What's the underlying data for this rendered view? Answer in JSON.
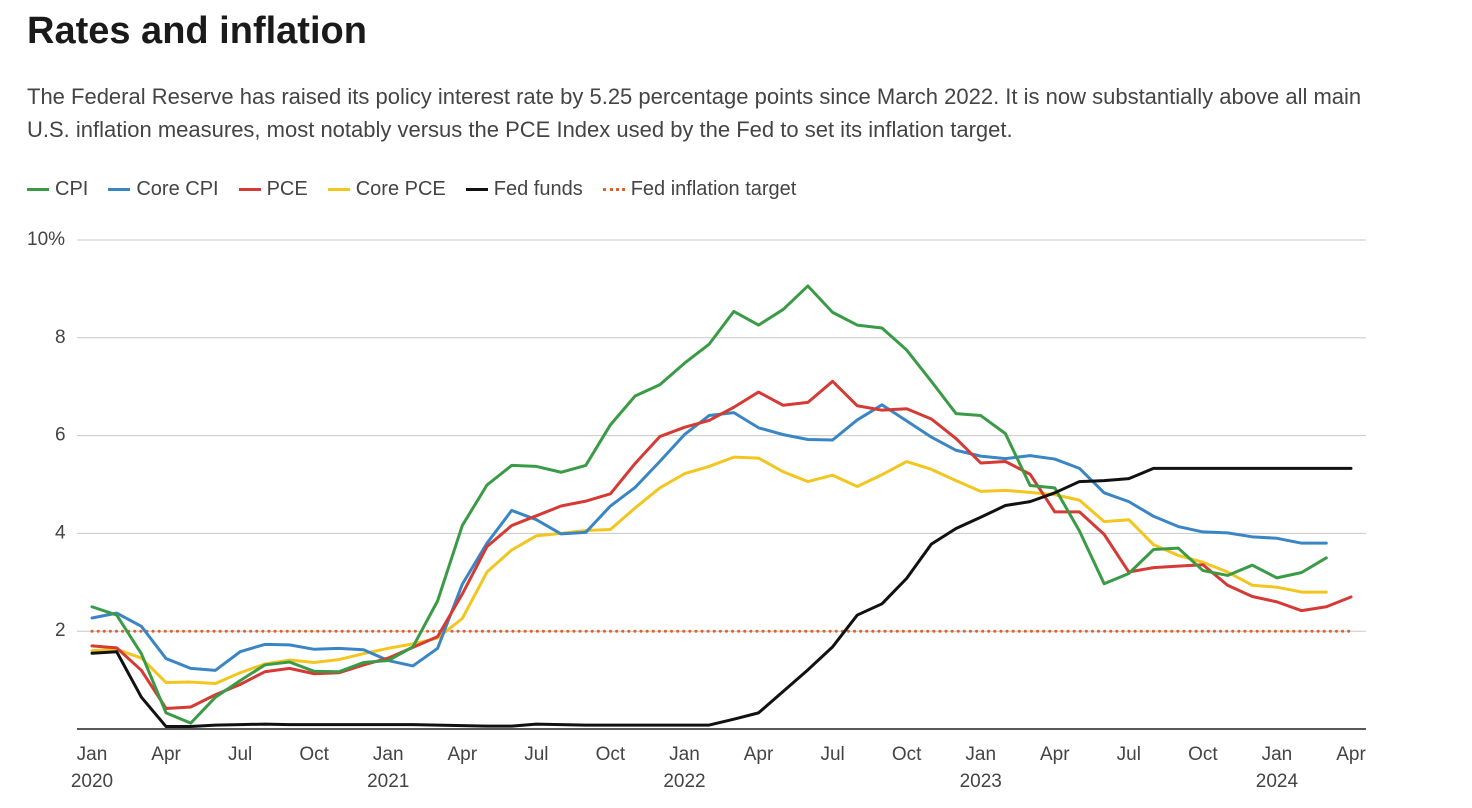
{
  "header": {
    "title": "Rates and inflation",
    "subtitle": "The Federal Reserve has raised its policy interest rate by 5.25 percentage points since March 2022. It is now substantially above all main U.S. inflation measures, most notably versus the PCE Index used by the Fed to set its inflation target."
  },
  "chart_data": {
    "type": "line",
    "title": "Rates and inflation",
    "subtitle": "The Federal Reserve has raised its policy interest rate by 5.25 percentage points since March 2022. It is now substantially above all main U.S. inflation measures, most notably versus the PCE Index used by the Fed to set its inflation target.",
    "xlabel": "",
    "ylabel": "",
    "x": [
      "2020-01",
      "2020-02",
      "2020-03",
      "2020-04",
      "2020-05",
      "2020-06",
      "2020-07",
      "2020-08",
      "2020-09",
      "2020-10",
      "2020-11",
      "2020-12",
      "2021-01",
      "2021-02",
      "2021-03",
      "2021-04",
      "2021-05",
      "2021-06",
      "2021-07",
      "2021-08",
      "2021-09",
      "2021-10",
      "2021-11",
      "2021-12",
      "2022-01",
      "2022-02",
      "2022-03",
      "2022-04",
      "2022-05",
      "2022-06",
      "2022-07",
      "2022-08",
      "2022-09",
      "2022-10",
      "2022-11",
      "2022-12",
      "2023-01",
      "2023-02",
      "2023-03",
      "2023-04",
      "2023-05",
      "2023-06",
      "2023-07",
      "2023-08",
      "2023-09",
      "2023-10",
      "2023-11",
      "2023-12",
      "2024-01",
      "2024-02",
      "2024-03",
      "2024-04"
    ],
    "xlim": [
      "2020-01",
      "2024-04"
    ],
    "ylim": [
      0,
      10
    ],
    "y_ticks": [
      {
        "value": 2,
        "label": "2"
      },
      {
        "value": 4,
        "label": "4"
      },
      {
        "value": 6,
        "label": "6"
      },
      {
        "value": 8,
        "label": "8"
      },
      {
        "value": 10,
        "label": "10%"
      }
    ],
    "x_ticks": [
      {
        "x": "2020-01",
        "label": "Jan",
        "year": "2020"
      },
      {
        "x": "2020-04",
        "label": "Apr",
        "year": ""
      },
      {
        "x": "2020-07",
        "label": "Jul",
        "year": ""
      },
      {
        "x": "2020-10",
        "label": "Oct",
        "year": ""
      },
      {
        "x": "2021-01",
        "label": "Jan",
        "year": "2021"
      },
      {
        "x": "2021-04",
        "label": "Apr",
        "year": ""
      },
      {
        "x": "2021-07",
        "label": "Jul",
        "year": ""
      },
      {
        "x": "2021-10",
        "label": "Oct",
        "year": ""
      },
      {
        "x": "2022-01",
        "label": "Jan",
        "year": "2022"
      },
      {
        "x": "2022-04",
        "label": "Apr",
        "year": ""
      },
      {
        "x": "2022-07",
        "label": "Jul",
        "year": ""
      },
      {
        "x": "2022-10",
        "label": "Oct",
        "year": ""
      },
      {
        "x": "2023-01",
        "label": "Jan",
        "year": "2023"
      },
      {
        "x": "2023-04",
        "label": "Apr",
        "year": ""
      },
      {
        "x": "2023-07",
        "label": "Jul",
        "year": ""
      },
      {
        "x": "2023-10",
        "label": "Oct",
        "year": ""
      },
      {
        "x": "2024-01",
        "label": "Jan",
        "year": "2024"
      },
      {
        "x": "2024-04",
        "label": "Apr",
        "year": ""
      }
    ],
    "grid": true,
    "legend_position": "top-left",
    "series": [
      {
        "name": "CPI",
        "color": "#3a9b46",
        "style": "solid",
        "values": [
          2.5,
          2.33,
          1.54,
          0.33,
          0.12,
          0.65,
          0.99,
          1.31,
          1.37,
          1.18,
          1.17,
          1.36,
          1.4,
          1.68,
          2.62,
          4.16,
          4.99,
          5.39,
          5.37,
          5.25,
          5.39,
          6.22,
          6.81,
          7.04,
          7.48,
          7.87,
          8.54,
          8.26,
          8.58,
          9.06,
          8.52,
          8.26,
          8.2,
          7.75,
          7.11,
          6.45,
          6.41,
          6.04,
          4.98,
          4.93,
          4.05,
          2.97,
          3.18,
          3.67,
          3.7,
          3.24,
          3.14,
          3.35,
          3.09,
          3.2,
          3.5,
          null
        ]
      },
      {
        "name": "Core CPI",
        "color": "#3a86c4",
        "style": "solid",
        "values": [
          2.27,
          2.37,
          2.1,
          1.44,
          1.24,
          1.2,
          1.58,
          1.73,
          1.72,
          1.63,
          1.65,
          1.62,
          1.4,
          1.29,
          1.65,
          2.96,
          3.8,
          4.47,
          4.28,
          3.99,
          4.02,
          4.56,
          4.94,
          5.47,
          6.02,
          6.41,
          6.47,
          6.16,
          6.02,
          5.92,
          5.91,
          6.32,
          6.63,
          6.3,
          5.97,
          5.7,
          5.58,
          5.53,
          5.59,
          5.52,
          5.33,
          4.83,
          4.65,
          4.35,
          4.14,
          4.03,
          4.01,
          3.93,
          3.9,
          3.8,
          3.8,
          null
        ]
      },
      {
        "name": "PCE",
        "color": "#d63a34",
        "style": "solid",
        "values": [
          1.7,
          1.66,
          1.2,
          0.42,
          0.45,
          0.7,
          0.91,
          1.17,
          1.24,
          1.13,
          1.15,
          1.31,
          1.45,
          1.67,
          1.89,
          2.76,
          3.73,
          4.16,
          4.36,
          4.56,
          4.66,
          4.81,
          5.43,
          5.98,
          6.17,
          6.31,
          6.58,
          6.89,
          6.62,
          6.68,
          7.11,
          6.61,
          6.52,
          6.55,
          6.34,
          5.94,
          5.44,
          5.47,
          5.21,
          4.44,
          4.44,
          3.98,
          3.21,
          3.3,
          3.33,
          3.36,
          2.94,
          2.71,
          2.6,
          2.42,
          2.5,
          2.7
        ]
      },
      {
        "name": "Core PCE",
        "color": "#f2c61f",
        "style": "solid",
        "values": [
          1.6,
          1.63,
          1.45,
          0.95,
          0.96,
          0.93,
          1.15,
          1.33,
          1.41,
          1.36,
          1.42,
          1.54,
          1.65,
          1.74,
          1.86,
          2.26,
          3.21,
          3.66,
          3.95,
          4.0,
          4.06,
          4.08,
          4.52,
          4.93,
          5.22,
          5.37,
          5.56,
          5.54,
          5.26,
          5.06,
          5.19,
          4.96,
          5.2,
          5.47,
          5.31,
          5.08,
          4.86,
          4.88,
          4.84,
          4.79,
          4.68,
          4.24,
          4.28,
          3.77,
          3.55,
          3.41,
          3.21,
          2.94,
          2.9,
          2.8,
          2.8,
          null
        ]
      },
      {
        "name": "Fed funds",
        "color": "#111111",
        "style": "solid",
        "values": [
          1.55,
          1.58,
          0.65,
          0.05,
          0.05,
          0.08,
          0.09,
          0.1,
          0.09,
          0.09,
          0.09,
          0.09,
          0.09,
          0.09,
          0.08,
          0.07,
          0.06,
          0.06,
          0.1,
          0.09,
          0.08,
          0.08,
          0.08,
          0.08,
          0.08,
          0.08,
          0.2,
          0.33,
          0.77,
          1.21,
          1.68,
          2.33,
          2.56,
          3.08,
          3.78,
          4.1,
          4.33,
          4.57,
          4.65,
          4.83,
          5.06,
          5.08,
          5.12,
          5.33,
          5.33,
          5.33,
          5.33,
          5.33,
          5.33,
          5.33,
          5.33,
          5.33
        ]
      },
      {
        "name": "Fed inflation target",
        "color": "#e0622a",
        "style": "dotted",
        "values": [
          2,
          2,
          2,
          2,
          2,
          2,
          2,
          2,
          2,
          2,
          2,
          2,
          2,
          2,
          2,
          2,
          2,
          2,
          2,
          2,
          2,
          2,
          2,
          2,
          2,
          2,
          2,
          2,
          2,
          2,
          2,
          2,
          2,
          2,
          2,
          2,
          2,
          2,
          2,
          2,
          2,
          2,
          2,
          2,
          2,
          2,
          2,
          2,
          2,
          2,
          2,
          2
        ]
      }
    ]
  }
}
